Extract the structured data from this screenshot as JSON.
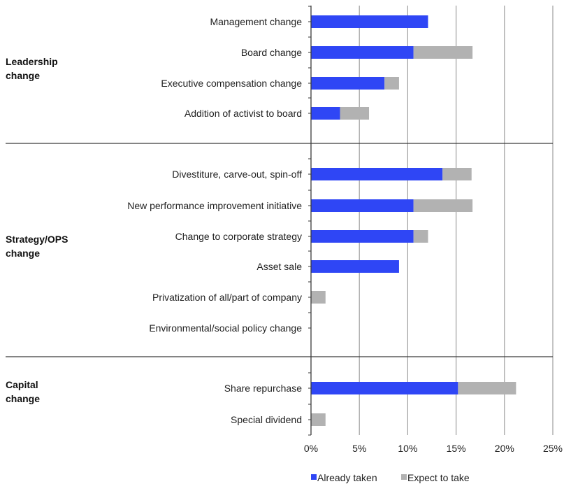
{
  "chart_data": {
    "type": "bar",
    "orientation": "horizontal",
    "stacked": true,
    "x_unit": "%",
    "xlim": [
      0,
      25
    ],
    "x_ticks": [
      0,
      5,
      10,
      15,
      20,
      25
    ],
    "x_tick_labels": [
      "0%",
      "5%",
      "10%",
      "15%",
      "20%",
      "25%"
    ],
    "grid": "vertical",
    "legend_position": "bottom",
    "categories": [
      "Management change",
      "Board change",
      "Executive compensation change",
      "Addition of activist to board",
      "Divestiture, carve-out, spin-off",
      "New performance improvement initiative",
      "Change to corporate strategy",
      "Asset sale",
      "Privatization of all/part of company",
      "Environmental/social policy change",
      "Share repurchase",
      "Special dividend"
    ],
    "groups": [
      {
        "label_lines": [
          "Leadership",
          "change"
        ],
        "categories": [
          0,
          1,
          2,
          3
        ]
      },
      {
        "label_lines": [
          "Strategy/OPS",
          "change"
        ],
        "categories": [
          4,
          5,
          6,
          7,
          8,
          9
        ]
      },
      {
        "label_lines": [
          "Capital",
          "change"
        ],
        "categories": [
          10,
          11
        ]
      }
    ],
    "series": [
      {
        "name": "Already taken",
        "color": "#2f46f5",
        "values": [
          12.1,
          10.6,
          7.6,
          3.0,
          13.6,
          10.6,
          10.6,
          9.1,
          0,
          0,
          15.2,
          0
        ]
      },
      {
        "name": "Expect to take",
        "color": "#b2b2b2",
        "values": [
          0,
          6.1,
          1.5,
          3.0,
          3.0,
          6.1,
          1.5,
          0,
          1.5,
          0,
          6.0,
          1.5
        ]
      }
    ]
  },
  "colors": {
    "grid": "#9e9e9e",
    "axis": "#3a3a3a",
    "separator": "#3a3a3a"
  }
}
